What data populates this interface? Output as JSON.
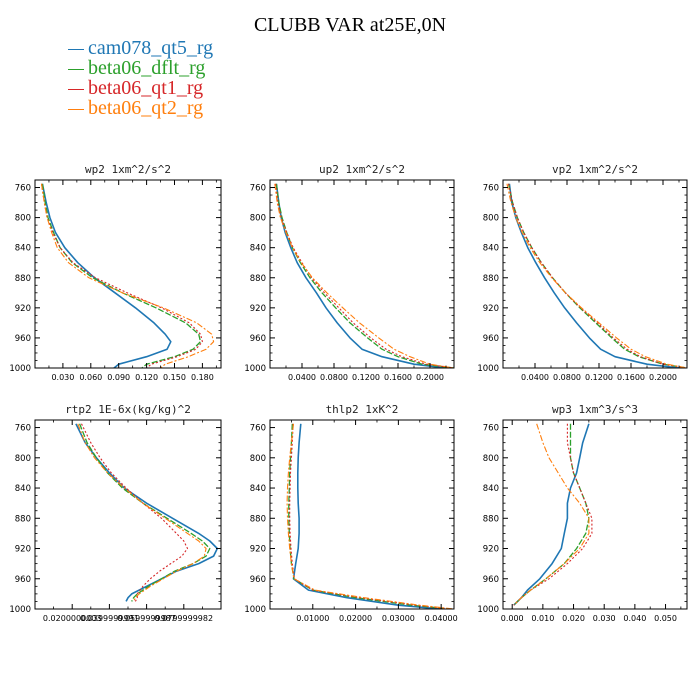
{
  "title": "CLUBB VAR at25E,0N",
  "legend": [
    {
      "name": "cam078_qt5_rg",
      "color": "#1f77b4"
    },
    {
      "name": "beta06_dflt_rg",
      "color": "#2ca02c"
    },
    {
      "name": "beta06_qt1_rg",
      "color": "#d62728"
    },
    {
      "name": "beta06_qt2_rg",
      "color": "#ff7f0e"
    }
  ],
  "chart_data": [
    {
      "type": "line",
      "title": "wp2  1xm^2/s^2",
      "xlim": [
        0.0,
        0.2
      ],
      "ylim": [
        1000,
        750
      ],
      "xticks": [
        0.03,
        0.06,
        0.09,
        0.12,
        0.15,
        0.18
      ],
      "xtick_labels": [
        "0.030",
        "0.060",
        "0.090",
        "0.120",
        "0.150",
        "0.180"
      ],
      "yticks": [
        760,
        800,
        840,
        880,
        920,
        960,
        1000
      ],
      "y": [
        755,
        780,
        800,
        820,
        840,
        860,
        880,
        900,
        920,
        940,
        955,
        965,
        975,
        985,
        995,
        1000
      ],
      "series": [
        {
          "values": [
            0.008,
            0.012,
            0.016,
            0.022,
            0.032,
            0.046,
            0.064,
            0.086,
            0.108,
            0.128,
            0.14,
            0.146,
            0.142,
            0.12,
            0.09,
            0.085
          ]
        },
        {
          "values": [
            0.008,
            0.011,
            0.014,
            0.02,
            0.027,
            0.04,
            0.062,
            0.094,
            0.13,
            0.162,
            0.176,
            0.178,
            0.17,
            0.15,
            0.12,
            0.115
          ]
        },
        {
          "values": [
            0.007,
            0.01,
            0.013,
            0.019,
            0.027,
            0.041,
            0.065,
            0.099,
            0.136,
            0.166,
            0.178,
            0.18,
            0.173,
            0.153,
            0.125,
            0.12
          ]
        },
        {
          "values": [
            0.007,
            0.01,
            0.013,
            0.018,
            0.024,
            0.036,
            0.058,
            0.094,
            0.138,
            0.174,
            0.19,
            0.192,
            0.184,
            0.165,
            0.14,
            0.135
          ]
        }
      ]
    },
    {
      "type": "line",
      "title": "up2  1xm^2/s^2",
      "xlim": [
        0.0,
        0.23
      ],
      "ylim": [
        1000,
        750
      ],
      "xticks": [
        0.04,
        0.08,
        0.12,
        0.16,
        0.2
      ],
      "xtick_labels": [
        "0.0400",
        "0.0800",
        "0.1200",
        "0.1600",
        "0.2000"
      ],
      "yticks": [
        760,
        800,
        840,
        880,
        920,
        960,
        1000
      ],
      "y": [
        755,
        780,
        800,
        820,
        840,
        860,
        880,
        900,
        920,
        940,
        960,
        975,
        985,
        995,
        1000
      ],
      "series": [
        {
          "values": [
            0.008,
            0.011,
            0.014,
            0.019,
            0.026,
            0.034,
            0.045,
            0.058,
            0.07,
            0.084,
            0.1,
            0.115,
            0.14,
            0.18,
            0.22
          ]
        },
        {
          "values": [
            0.008,
            0.011,
            0.015,
            0.021,
            0.028,
            0.038,
            0.05,
            0.065,
            0.082,
            0.1,
            0.122,
            0.14,
            0.16,
            0.19,
            0.23
          ]
        },
        {
          "values": [
            0.007,
            0.01,
            0.014,
            0.021,
            0.029,
            0.04,
            0.052,
            0.068,
            0.086,
            0.104,
            0.126,
            0.145,
            0.165,
            0.195,
            0.23
          ]
        },
        {
          "values": [
            0.006,
            0.009,
            0.013,
            0.02,
            0.028,
            0.039,
            0.053,
            0.071,
            0.091,
            0.112,
            0.136,
            0.155,
            0.175,
            0.2,
            0.23
          ]
        }
      ]
    },
    {
      "type": "line",
      "title": "vp2  1xm^2/s^2",
      "xlim": [
        0.0,
        0.23
      ],
      "ylim": [
        1000,
        750
      ],
      "xticks": [
        0.04,
        0.08,
        0.12,
        0.16,
        0.2
      ],
      "xtick_labels": [
        "0.0400",
        "0.0800",
        "0.1200",
        "0.1600",
        "0.2000"
      ],
      "yticks": [
        760,
        800,
        840,
        880,
        920,
        960,
        1000
      ],
      "y": [
        755,
        780,
        800,
        820,
        840,
        860,
        880,
        900,
        920,
        940,
        960,
        975,
        985,
        995,
        1000
      ],
      "series": [
        {
          "values": [
            0.008,
            0.011,
            0.016,
            0.023,
            0.031,
            0.041,
            0.052,
            0.064,
            0.077,
            0.092,
            0.108,
            0.122,
            0.14,
            0.18,
            0.22
          ]
        },
        {
          "values": [
            0.007,
            0.012,
            0.018,
            0.026,
            0.036,
            0.048,
            0.062,
            0.078,
            0.096,
            0.116,
            0.136,
            0.152,
            0.17,
            0.2,
            0.23
          ]
        },
        {
          "values": [
            0.007,
            0.012,
            0.018,
            0.026,
            0.036,
            0.048,
            0.062,
            0.078,
            0.097,
            0.118,
            0.138,
            0.155,
            0.172,
            0.2,
            0.23
          ]
        },
        {
          "values": [
            0.005,
            0.01,
            0.016,
            0.024,
            0.034,
            0.046,
            0.061,
            0.078,
            0.098,
            0.12,
            0.142,
            0.16,
            0.178,
            0.205,
            0.23
          ]
        }
      ]
    },
    {
      "type": "line",
      "title": "rtp2  1E-6x(kg/kg)^2",
      "xlim": [
        0.0,
        0.1
      ],
      "ylim": [
        1000,
        750
      ],
      "xticks": [
        0.02,
        0.04,
        0.06,
        0.08
      ],
      "xtick_labels": [
        "0.0200000003",
        "0.0399999991",
        "0.0599999987",
        "0.0799999982"
      ],
      "yticks": [
        760,
        800,
        840,
        880,
        920,
        960,
        1000
      ],
      "y": [
        755,
        780,
        800,
        820,
        840,
        860,
        880,
        900,
        910,
        920,
        930,
        940,
        950,
        960,
        970,
        980,
        985,
        990
      ],
      "series": [
        {
          "values": [
            0.022,
            0.027,
            0.033,
            0.04,
            0.048,
            0.06,
            0.074,
            0.088,
            0.094,
            0.098,
            0.096,
            0.088,
            0.076,
            0.068,
            0.06,
            0.052,
            0.05,
            0.049
          ]
        },
        {
          "values": [
            0.024,
            0.028,
            0.033,
            0.039,
            0.047,
            0.058,
            0.071,
            0.084,
            0.09,
            0.094,
            0.092,
            0.085,
            0.075,
            0.068,
            0.061,
            0.055,
            0.053,
            0.052
          ]
        },
        {
          "values": [
            0.025,
            0.03,
            0.035,
            0.041,
            0.049,
            0.058,
            0.068,
            0.076,
            0.08,
            0.082,
            0.079,
            0.073,
            0.067,
            0.062,
            0.058,
            0.055,
            0.055,
            0.054
          ]
        },
        {
          "values": [
            0.023,
            0.027,
            0.032,
            0.039,
            0.048,
            0.058,
            0.07,
            0.082,
            0.088,
            0.092,
            0.091,
            0.085,
            0.076,
            0.069,
            0.062,
            0.056,
            0.054,
            0.053
          ]
        }
      ]
    },
    {
      "type": "line",
      "title": "thlp2  1xK^2",
      "xlim": [
        0.0,
        0.043
      ],
      "ylim": [
        1000,
        750
      ],
      "xticks": [
        0.01,
        0.02,
        0.03,
        0.04
      ],
      "xtick_labels": [
        "0.01000",
        "0.02000",
        "0.03000",
        "0.04000"
      ],
      "yticks": [
        760,
        800,
        840,
        880,
        920,
        960,
        1000
      ],
      "y": [
        755,
        780,
        800,
        820,
        840,
        860,
        880,
        900,
        920,
        940,
        960,
        975,
        985,
        995,
        1000
      ],
      "series": [
        {
          "values": [
            0.0072,
            0.0068,
            0.0066,
            0.0065,
            0.0065,
            0.0066,
            0.0068,
            0.0068,
            0.0066,
            0.006,
            0.0055,
            0.009,
            0.018,
            0.03,
            0.04
          ]
        },
        {
          "values": [
            0.0052,
            0.005,
            0.0048,
            0.0046,
            0.0045,
            0.0044,
            0.0044,
            0.0045,
            0.0047,
            0.005,
            0.0056,
            0.01,
            0.02,
            0.033,
            0.042
          ]
        },
        {
          "values": [
            0.0054,
            0.0052,
            0.005,
            0.0048,
            0.0047,
            0.0046,
            0.0046,
            0.0047,
            0.0049,
            0.0052,
            0.0057,
            0.01,
            0.021,
            0.034,
            0.042
          ]
        },
        {
          "values": [
            0.0055,
            0.005,
            0.0046,
            0.0043,
            0.0041,
            0.004,
            0.0041,
            0.0043,
            0.0046,
            0.005,
            0.0056,
            0.0105,
            0.022,
            0.035,
            0.043
          ]
        }
      ]
    },
    {
      "type": "line",
      "title": "wp3  1xm^3/s^3",
      "xlim": [
        -0.003,
        0.057
      ],
      "ylim": [
        1000,
        750
      ],
      "xticks": [
        0.0,
        0.01,
        0.02,
        0.03,
        0.04,
        0.05
      ],
      "xtick_labels": [
        "0.000",
        "0.010",
        "0.020",
        "0.030",
        "0.040",
        "0.050"
      ],
      "yticks": [
        760,
        800,
        840,
        880,
        920,
        960,
        1000
      ],
      "y": [
        755,
        780,
        800,
        820,
        840,
        860,
        880,
        900,
        920,
        940,
        960,
        975,
        985,
        995
      ],
      "series": [
        {
          "values": [
            0.025,
            0.023,
            0.022,
            0.021,
            0.019,
            0.018,
            0.018,
            0.017,
            0.016,
            0.013,
            0.009,
            0.005,
            0.003,
            0.0005
          ]
        },
        {
          "values": [
            0.019,
            0.019,
            0.019,
            0.02,
            0.022,
            0.024,
            0.025,
            0.024,
            0.021,
            0.017,
            0.011,
            0.006,
            0.003,
            0.0005
          ]
        },
        {
          "values": [
            0.018,
            0.018,
            0.019,
            0.02,
            0.022,
            0.024,
            0.026,
            0.026,
            0.023,
            0.018,
            0.012,
            0.006,
            0.003,
            0.0005
          ]
        },
        {
          "values": [
            0.008,
            0.01,
            0.012,
            0.015,
            0.018,
            0.022,
            0.025,
            0.025,
            0.022,
            0.017,
            0.011,
            0.006,
            0.003,
            0.0005
          ]
        }
      ]
    }
  ]
}
